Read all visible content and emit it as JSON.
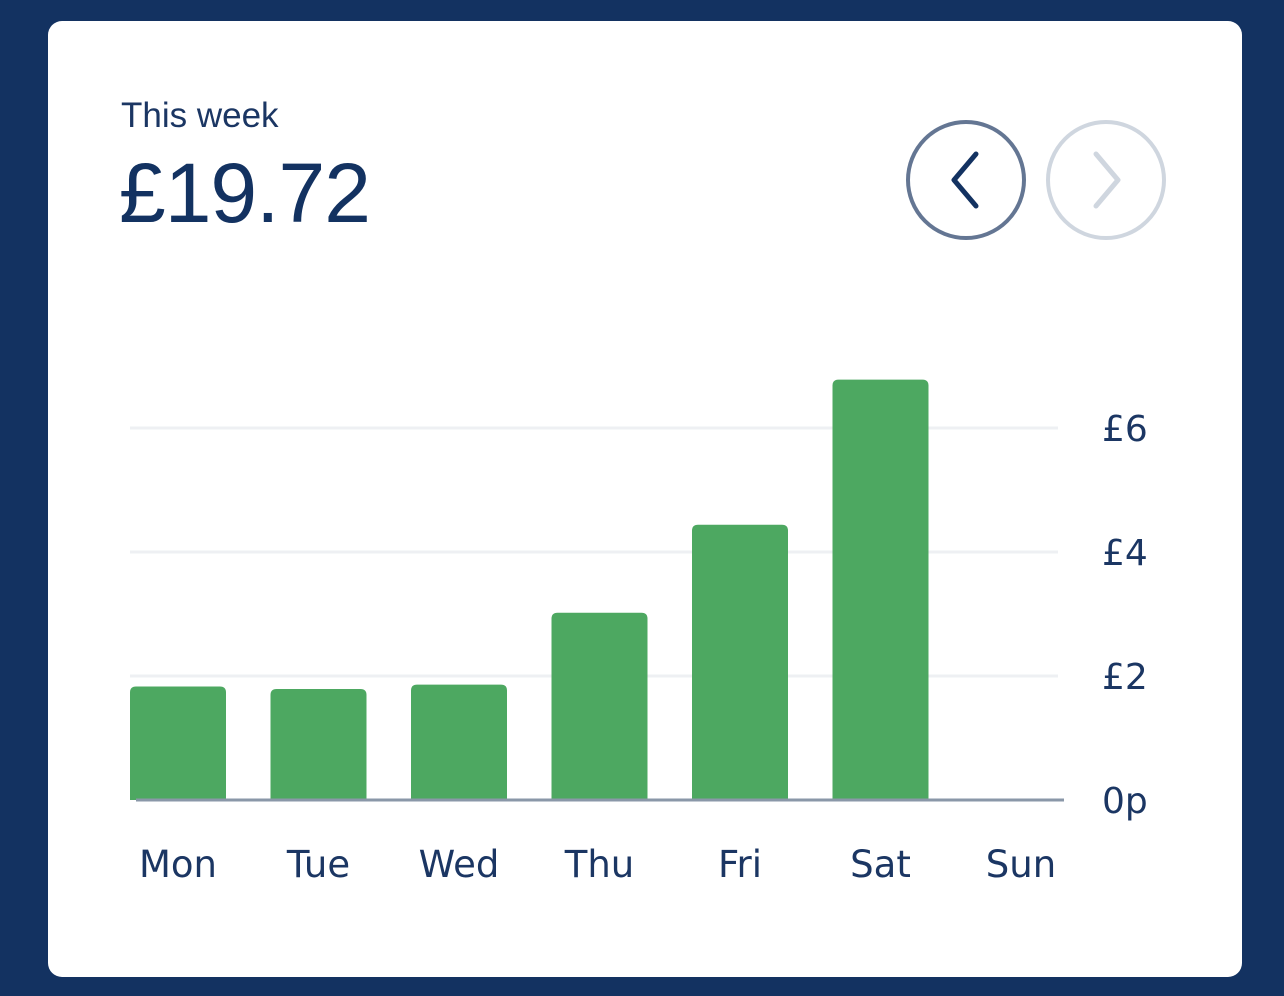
{
  "summary": {
    "period_label": "This week",
    "total": "£19.72"
  },
  "navigation": {
    "previous_icon": "chevron-left-icon",
    "next_icon": "chevron-right-icon",
    "next_enabled": false
  },
  "colors": {
    "background": "#133261",
    "card": "#ffffff",
    "bar": "#4da861",
    "text": "#1b3663",
    "gridline": "#eef0f3",
    "baseline": "#8a97a8"
  },
  "chart_data": {
    "type": "bar",
    "categories": [
      "Mon",
      "Tue",
      "Wed",
      "Thu",
      "Fri",
      "Sat",
      "Sun"
    ],
    "values": [
      1.83,
      1.79,
      1.86,
      3.02,
      4.44,
      6.78,
      0
    ],
    "title": "",
    "xlabel": "",
    "ylabel": "",
    "ylim": [
      0,
      6
    ],
    "yticks": [
      0,
      2,
      4,
      6
    ],
    "ytick_labels": [
      "0p",
      "£2",
      "£4",
      "£6"
    ],
    "grid": true,
    "y_axis_side": "right"
  }
}
